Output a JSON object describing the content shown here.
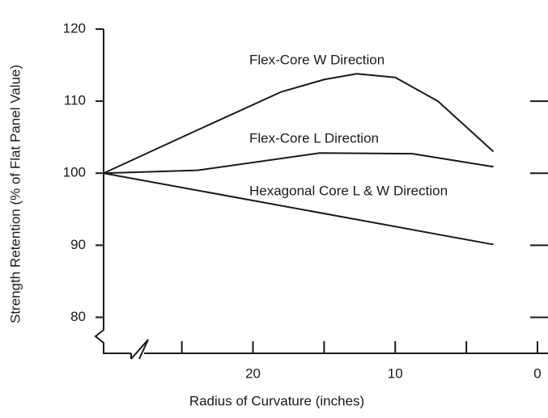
{
  "chart_data": {
    "type": "line",
    "x_label": "Radius of Curvature (inches)",
    "y_label": "Strength Retention (% of Flat Panel Value)",
    "xlim": [
      30.5,
      0
    ],
    "xticks": [
      20,
      10,
      0
    ],
    "xminor": [
      25,
      15,
      5
    ],
    "ylim": [
      75,
      120
    ],
    "yticks": [
      80,
      90,
      100,
      110,
      120
    ],
    "color": "#1a1a1a",
    "series": [
      {
        "name": "Flex-Core W Direction",
        "x": [
          30.5,
          24,
          18,
          15,
          12.7,
          10,
          7,
          3.1
        ],
        "values": [
          100,
          105.9,
          111.3,
          113,
          113.8,
          113.3,
          110,
          103
        ]
      },
      {
        "name": "Flex-Core L Direction",
        "x": [
          30.5,
          23.9,
          15.3,
          8.8,
          3.1
        ],
        "values": [
          100,
          100.4,
          102.8,
          102.7,
          100.9
        ]
      },
      {
        "name": "Hexagonal Core L & W Direction",
        "x": [
          30.5,
          3.1
        ],
        "values": [
          100,
          90.1
        ]
      }
    ]
  }
}
